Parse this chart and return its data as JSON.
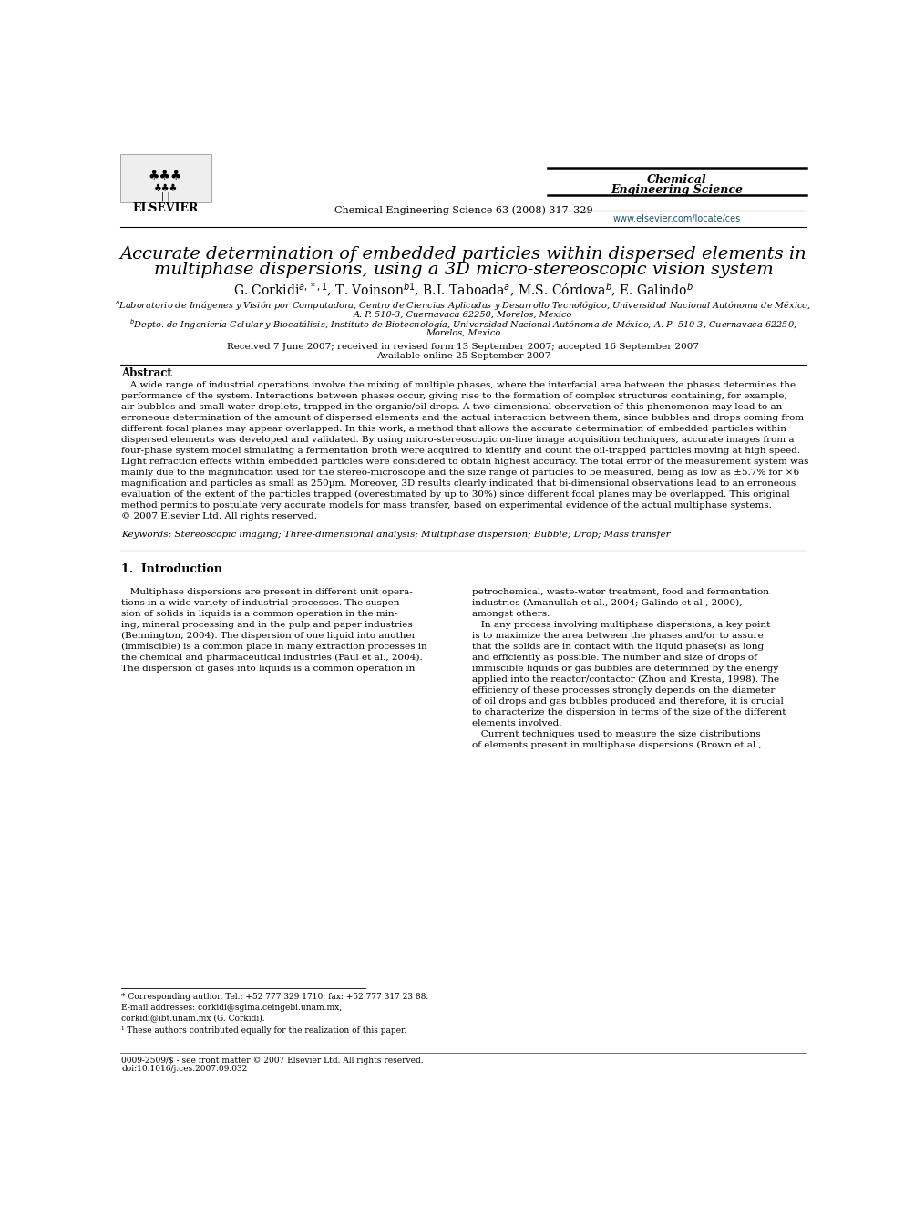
{
  "background_color": "#ffffff",
  "header": {
    "journal_name_line1": "Chemical",
    "journal_name_line2": "Engineering Science",
    "journal_ref": "Chemical Engineering Science 63 (2008) 317–329",
    "elsevier_text": "ELSEVIER",
    "website": "www.elsevier.com/locate/ces",
    "website_color": "#1a5276"
  },
  "title_line1": "Accurate determination of embedded particles within dispersed elements in",
  "title_line2": "multiphase dispersions, using a 3D micro-stereoscopic vision system",
  "authors": "G. Corkidi$^{a,*,1}$, T. Voinson$^{b1}$, B.I. Taboada$^{a}$, M.S. Córdova$^{b}$, E. Galindo$^{b}$",
  "affiliation_a1": "$^{a}$Laboratorio de Imágenes y Visión por Computadora, Centro de Ciencias Aplicadas y Desarrollo Tecnológico, Universidad Nacional Autónoma de México,",
  "affiliation_a2": "A. P. 510-3, Cuernavaca 62250, Morelos, Mexico",
  "affiliation_b1": "$^{b}$Depto. de Ingeniería Celular y Biocatálisis, Instituto de Biotecnología, Universidad Nacional Autónoma de México, A. P. 510-3, Cuernavaca 62250,",
  "affiliation_b2": "Morelos, Mexico",
  "received": "Received 7 June 2007; received in revised form 13 September 2007; accepted 16 September 2007",
  "available": "Available online 25 September 2007",
  "abstract_title": "Abstract",
  "abstract_lines": [
    "   A wide range of industrial operations involve the mixing of multiple phases, where the interfacial area between the phases determines the",
    "performance of the system. Interactions between phases occur, giving rise to the formation of complex structures containing, for example,",
    "air bubbles and small water droplets, trapped in the organic/oil drops. A two-dimensional observation of this phenomenon may lead to an",
    "erroneous determination of the amount of dispersed elements and the actual interaction between them, since bubbles and drops coming from",
    "different focal planes may appear overlapped. In this work, a method that allows the accurate determination of embedded particles within",
    "dispersed elements was developed and validated. By using micro-stereoscopic on-line image acquisition techniques, accurate images from a",
    "four-phase system model simulating a fermentation broth were acquired to identify and count the oil-trapped particles moving at high speed.",
    "Light refraction effects within embedded particles were considered to obtain highest accuracy. The total error of the measurement system was",
    "mainly due to the magnification used for the stereo-microscope and the size range of particles to be measured, being as low as ±5.7% for ×6",
    "magnification and particles as small as 250µm. Moreover, 3D results clearly indicated that bi-dimensional observations lead to an erroneous",
    "evaluation of the extent of the particles trapped (overestimated by up to 30%) since different focal planes may be overlapped. This original",
    "method permits to postulate very accurate models for mass transfer, based on experimental evidence of the actual multiphase systems.",
    "© 2007 Elsevier Ltd. All rights reserved."
  ],
  "keywords_label": "Keywords:",
  "keywords_text": "Stereoscopic imaging; Three-dimensional analysis; Multiphase dispersion; Bubble; Drop; Mass transfer",
  "intro_title": "1.  Introduction",
  "intro1_lines": [
    "   Multiphase dispersions are present in different unit opera-",
    "tions in a wide variety of industrial processes. The suspen-",
    "sion of solids in liquids is a common operation in the min-",
    "ing, mineral processing and in the pulp and paper industries",
    "(Bennington, 2004). The dispersion of one liquid into another",
    "(immiscible) is a common place in many extraction processes in",
    "the chemical and pharmaceutical industries (Paul et al., 2004).",
    "The dispersion of gases into liquids is a common operation in"
  ],
  "intro2_lines": [
    "petrochemical, waste-water treatment, food and fermentation",
    "industries (Amanullah et al., 2004; Galindo et al., 2000),",
    "amongst others.",
    "   In any process involving multiphase dispersions, a key point",
    "is to maximize the area between the phases and/or to assure",
    "that the solids are in contact with the liquid phase(s) as long",
    "and efficiently as possible. The number and size of drops of",
    "immiscible liquids or gas bubbles are determined by the energy",
    "applied into the reactor/contactor (Zhou and Kresta, 1998). The",
    "efficiency of these processes strongly depends on the diameter",
    "of oil drops and gas bubbles produced and therefore, it is crucial",
    "to characterize the dispersion in terms of the size of the different",
    "elements involved.",
    "   Current techniques used to measure the size distributions",
    "of elements present in multiphase dispersions (Brown et al.,"
  ],
  "footnote_star": "* Corresponding author. Tel.: +52 777 329 1710; fax: +52 777 317 23 88.",
  "footnote_email1": "E-mail addresses: corkidi@sgima.ceingebi.unam.mx,",
  "footnote_email2": "corkidi@ibt.unam.mx (G. Corkidi).",
  "footnote_1": "¹ These authors contributed equally for the realization of this paper.",
  "footer_issn": "0009-2509/$ - see front matter © 2007 Elsevier Ltd. All rights reserved.",
  "footer_doi": "doi:10.1016/j.ces.2007.09.032"
}
